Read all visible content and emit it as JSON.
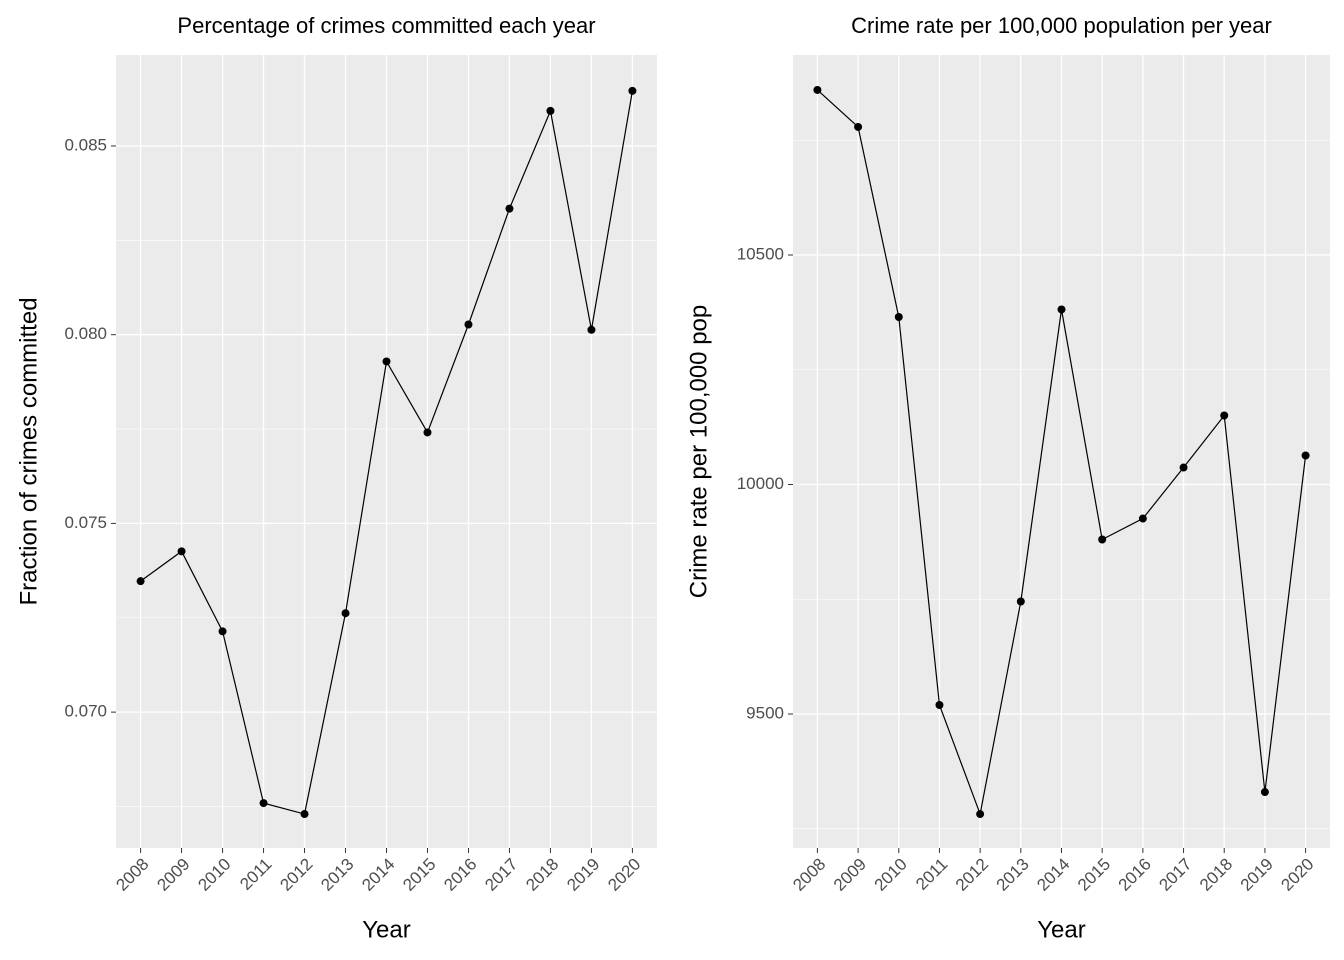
{
  "chart_data": [
    {
      "type": "line",
      "title": "Percentage of crimes committed each year",
      "x_label": "Year",
      "y_label": "Fraction of crimes committed",
      "categories": [
        "2008",
        "2009",
        "2010",
        "2011",
        "2012",
        "2013",
        "2014",
        "2015",
        "2016",
        "2017",
        "2018",
        "2019",
        "2020"
      ],
      "values": [
        0.07347,
        0.07426,
        0.07214,
        0.06759,
        0.0673,
        0.07262,
        0.07929,
        0.07741,
        0.08027,
        0.08334,
        0.08593,
        0.08013,
        0.08646
      ],
      "color": "#000000",
      "ylim": [
        0.0664,
        0.08741
      ],
      "yticks": [
        {
          "value": 0.07,
          "label": "0.070"
        },
        0.075,
        {
          "value": 0.08,
          "label": "0.080"
        },
        0.085
      ],
      "grid": true,
      "minor_grid": true
    },
    {
      "type": "line",
      "title": "Crime rate per 100,000 population per year",
      "x_label": "Year",
      "y_label": "Crime rate per 100,000 pop",
      "categories": [
        "2008",
        "2009",
        "2010",
        "2011",
        "2012",
        "2013",
        "2014",
        "2015",
        "2016",
        "2017",
        "2018",
        "2019",
        "2020"
      ],
      "values": [
        10859.5,
        10778.9,
        10364.9,
        9519.6,
        9282.1,
        9745.1,
        10381.3,
        9880.2,
        9925.9,
        10037.0,
        10150.3,
        9330.0,
        10063.2
      ],
      "color": "#000000",
      "ylim": [
        9208.1,
        10935.7
      ],
      "yticks": [
        9500,
        10000,
        10500
      ],
      "grid": true,
      "minor_grid": true
    }
  ]
}
